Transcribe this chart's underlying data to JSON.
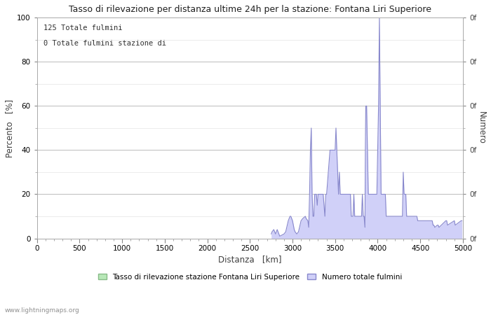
{
  "title": "Tasso di rilevazione per distanza ultime 24h per la stazione: Fontana Liri Superiore",
  "annotation_line1": "125 Totale fulmini",
  "annotation_line2": "0 Totale fulmini stazione di",
  "xlabel": "Distanza   [km]",
  "ylabel_left": "Percento   [%]",
  "ylabel_right": "Numero",
  "right_tick_label": "0f",
  "xlim": [
    0,
    5000
  ],
  "ylim": [
    0,
    100
  ],
  "xticks": [
    0,
    500,
    1000,
    1500,
    2000,
    2500,
    3000,
    3500,
    4000,
    4500,
    5000
  ],
  "yticks_major": [
    0,
    20,
    40,
    60,
    80,
    100
  ],
  "yticks_minor": [
    10,
    30,
    50,
    70,
    90
  ],
  "watermark": "www.lightningmaps.org",
  "legend_label1": "Tasso di rilevazione stazione Fontana Liri Superiore",
  "legend_label2": "Numero totale fulmini",
  "fill_color": "#d0d0f8",
  "line_color": "#8888cc",
  "grid_color_major": "#bbbbbb",
  "grid_color_minor": "#dddddd",
  "legend_color1": "#b8e8b8",
  "legend_edge1": "#88bb88",
  "bar_data": [
    [
      2750,
      2
    ],
    [
      2760,
      3
    ],
    [
      2780,
      4
    ],
    [
      2790,
      3
    ],
    [
      2800,
      2
    ],
    [
      2810,
      3
    ],
    [
      2820,
      4
    ],
    [
      2830,
      3
    ],
    [
      2840,
      2
    ],
    [
      2850,
      1
    ],
    [
      2900,
      2
    ],
    [
      2920,
      3
    ],
    [
      2950,
      8
    ],
    [
      2960,
      9
    ],
    [
      2970,
      10
    ],
    [
      2980,
      10
    ],
    [
      2990,
      9
    ],
    [
      3000,
      8
    ],
    [
      3010,
      6
    ],
    [
      3020,
      4
    ],
    [
      3030,
      3
    ],
    [
      3050,
      2
    ],
    [
      3070,
      3
    ],
    [
      3100,
      8
    ],
    [
      3120,
      9
    ],
    [
      3150,
      10
    ],
    [
      3160,
      9
    ],
    [
      3180,
      8
    ],
    [
      3190,
      5
    ],
    [
      3200,
      20
    ],
    [
      3205,
      30
    ],
    [
      3210,
      40
    ],
    [
      3215,
      45
    ],
    [
      3220,
      50
    ],
    [
      3225,
      35
    ],
    [
      3230,
      20
    ],
    [
      3235,
      15
    ],
    [
      3240,
      10
    ],
    [
      3250,
      10
    ],
    [
      3260,
      20
    ],
    [
      3270,
      20
    ],
    [
      3280,
      20
    ],
    [
      3290,
      15
    ],
    [
      3300,
      20
    ],
    [
      3310,
      20
    ],
    [
      3320,
      20
    ],
    [
      3330,
      20
    ],
    [
      3340,
      20
    ],
    [
      3350,
      20
    ],
    [
      3360,
      20
    ],
    [
      3370,
      15
    ],
    [
      3380,
      10
    ],
    [
      3390,
      20
    ],
    [
      3400,
      20
    ],
    [
      3410,
      25
    ],
    [
      3420,
      30
    ],
    [
      3430,
      35
    ],
    [
      3440,
      40
    ],
    [
      3450,
      40
    ],
    [
      3460,
      40
    ],
    [
      3470,
      40
    ],
    [
      3480,
      40
    ],
    [
      3490,
      40
    ],
    [
      3500,
      40
    ],
    [
      3505,
      45
    ],
    [
      3510,
      50
    ],
    [
      3515,
      45
    ],
    [
      3520,
      40
    ],
    [
      3525,
      35
    ],
    [
      3530,
      30
    ],
    [
      3540,
      20
    ],
    [
      3545,
      25
    ],
    [
      3550,
      30
    ],
    [
      3555,
      25
    ],
    [
      3560,
      20
    ],
    [
      3570,
      20
    ],
    [
      3580,
      20
    ],
    [
      3590,
      20
    ],
    [
      3600,
      20
    ],
    [
      3610,
      20
    ],
    [
      3620,
      20
    ],
    [
      3630,
      20
    ],
    [
      3640,
      20
    ],
    [
      3650,
      20
    ],
    [
      3660,
      20
    ],
    [
      3670,
      20
    ],
    [
      3680,
      20
    ],
    [
      3690,
      10
    ],
    [
      3700,
      10
    ],
    [
      3710,
      10
    ],
    [
      3720,
      20
    ],
    [
      3730,
      10
    ],
    [
      3740,
      10
    ],
    [
      3750,
      10
    ],
    [
      3760,
      10
    ],
    [
      3770,
      10
    ],
    [
      3780,
      10
    ],
    [
      3790,
      10
    ],
    [
      3800,
      10
    ],
    [
      3810,
      10
    ],
    [
      3820,
      20
    ],
    [
      3830,
      10
    ],
    [
      3840,
      10
    ],
    [
      3850,
      5
    ],
    [
      3855,
      40
    ],
    [
      3860,
      60
    ],
    [
      3865,
      60
    ],
    [
      3870,
      60
    ],
    [
      3875,
      50
    ],
    [
      3880,
      40
    ],
    [
      3885,
      30
    ],
    [
      3890,
      20
    ],
    [
      3900,
      20
    ],
    [
      3910,
      20
    ],
    [
      3920,
      20
    ],
    [
      3930,
      20
    ],
    [
      3940,
      20
    ],
    [
      3950,
      20
    ],
    [
      3960,
      20
    ],
    [
      3970,
      20
    ],
    [
      3980,
      20
    ],
    [
      3990,
      20
    ],
    [
      3995,
      30
    ],
    [
      4000,
      40
    ],
    [
      4005,
      50
    ],
    [
      4010,
      60
    ],
    [
      4015,
      80
    ],
    [
      4020,
      100
    ],
    [
      4025,
      80
    ],
    [
      4030,
      60
    ],
    [
      4035,
      40
    ],
    [
      4040,
      20
    ],
    [
      4050,
      20
    ],
    [
      4060,
      20
    ],
    [
      4070,
      20
    ],
    [
      4080,
      20
    ],
    [
      4090,
      20
    ],
    [
      4100,
      10
    ],
    [
      4110,
      10
    ],
    [
      4120,
      10
    ],
    [
      4130,
      10
    ],
    [
      4140,
      10
    ],
    [
      4150,
      10
    ],
    [
      4160,
      10
    ],
    [
      4170,
      10
    ],
    [
      4180,
      10
    ],
    [
      4190,
      10
    ],
    [
      4200,
      10
    ],
    [
      4210,
      10
    ],
    [
      4220,
      10
    ],
    [
      4230,
      10
    ],
    [
      4240,
      10
    ],
    [
      4250,
      10
    ],
    [
      4260,
      10
    ],
    [
      4270,
      10
    ],
    [
      4280,
      10
    ],
    [
      4290,
      10
    ],
    [
      4295,
      20
    ],
    [
      4300,
      30
    ],
    [
      4305,
      25
    ],
    [
      4310,
      20
    ],
    [
      4320,
      20
    ],
    [
      4330,
      20
    ],
    [
      4335,
      15
    ],
    [
      4340,
      10
    ],
    [
      4350,
      10
    ],
    [
      4360,
      10
    ],
    [
      4370,
      10
    ],
    [
      4380,
      10
    ],
    [
      4390,
      10
    ],
    [
      4400,
      10
    ],
    [
      4410,
      10
    ],
    [
      4420,
      10
    ],
    [
      4430,
      10
    ],
    [
      4440,
      10
    ],
    [
      4450,
      10
    ],
    [
      4460,
      10
    ],
    [
      4470,
      8
    ],
    [
      4480,
      8
    ],
    [
      4490,
      8
    ],
    [
      4500,
      8
    ],
    [
      4510,
      8
    ],
    [
      4520,
      8
    ],
    [
      4530,
      8
    ],
    [
      4540,
      8
    ],
    [
      4550,
      8
    ],
    [
      4560,
      8
    ],
    [
      4570,
      8
    ],
    [
      4580,
      8
    ],
    [
      4590,
      8
    ],
    [
      4600,
      8
    ],
    [
      4610,
      8
    ],
    [
      4620,
      8
    ],
    [
      4630,
      8
    ],
    [
      4640,
      8
    ],
    [
      4650,
      6
    ],
    [
      4660,
      6
    ],
    [
      4670,
      5
    ],
    [
      4700,
      6
    ],
    [
      4710,
      6
    ],
    [
      4720,
      5
    ],
    [
      4800,
      8
    ],
    [
      4810,
      8
    ],
    [
      4820,
      6
    ],
    [
      4900,
      8
    ],
    [
      4910,
      6
    ],
    [
      4980,
      8
    ],
    [
      4990,
      8
    ]
  ]
}
